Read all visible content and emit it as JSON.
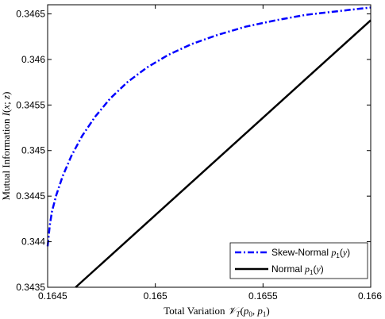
{
  "chart_data": {
    "type": "line",
    "xlabel": "Total Variation 𝒱_T(p₀, p₁)",
    "ylabel": "Mutual Information I(x; z)",
    "xlim": [
      0.1645,
      0.166
    ],
    "ylim": [
      0.3435,
      0.3466
    ],
    "xticks": [
      0.1645,
      0.165,
      0.1655,
      0.166
    ],
    "xtick_labels": [
      "0.1645",
      "0.165",
      "0.1655",
      "0.166"
    ],
    "yticks": [
      0.3435,
      0.344,
      0.3445,
      0.345,
      0.3455,
      0.346,
      0.3465
    ],
    "ytick_labels": [
      "0.3435",
      "0.344",
      "0.3445",
      "0.345",
      "0.3455",
      "0.346",
      "0.3465"
    ],
    "grid": false,
    "legend_position": "bottom-right",
    "series": [
      {
        "name": "Skew-Normal p₁(y)",
        "color": "#0000ff",
        "style": "dashdot",
        "x": [
          0.1645,
          0.16451,
          0.16452,
          0.16454,
          0.16457,
          0.16461,
          0.16466,
          0.16472,
          0.16479,
          0.16487,
          0.16496,
          0.16506,
          0.16517,
          0.16529,
          0.16542,
          0.16556,
          0.1657,
          0.16585,
          0.166
        ],
        "y": [
          0.34395,
          0.34418,
          0.34433,
          0.34451,
          0.34472,
          0.34494,
          0.34516,
          0.34537,
          0.34557,
          0.34575,
          0.34591,
          0.34605,
          0.34617,
          0.34627,
          0.34636,
          0.34643,
          0.34649,
          0.34653,
          0.34657
        ]
      },
      {
        "name": "Normal p₁(y)",
        "color": "#000000",
        "style": "solid",
        "x": [
          0.16463,
          0.166
        ],
        "y": [
          0.3435,
          0.34643
        ]
      }
    ]
  }
}
